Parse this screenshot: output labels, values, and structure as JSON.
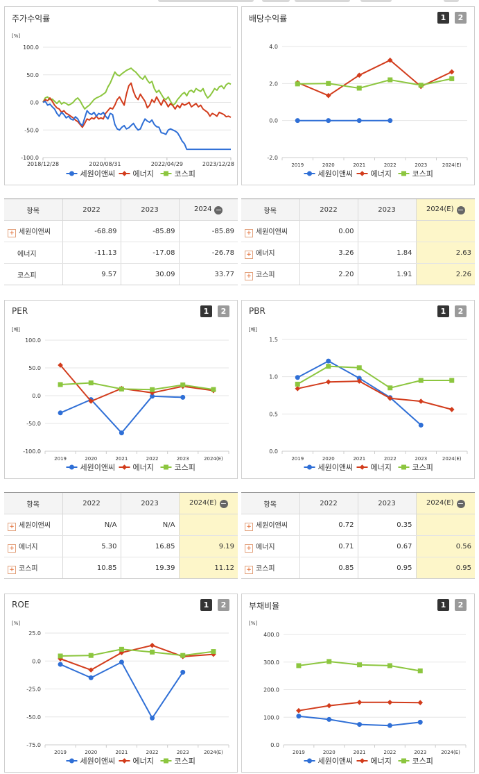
{
  "series_names": [
    "세원이앤씨",
    "에너지",
    "코스피"
  ],
  "series_colors": [
    "#2f6fd6",
    "#d23c1c",
    "#8cc63f"
  ],
  "pager": [
    "1",
    "2"
  ],
  "charts": [
    {
      "id": "stock",
      "title": "주가수익률",
      "unit": "[%]",
      "yticks": [
        "100.0",
        "50.0",
        "0.0",
        "-50.0",
        "-100.0"
      ],
      "xticks": [
        "2018/12/28",
        "2020/08/31",
        "2022/04/29",
        "2023/12/28"
      ]
    },
    {
      "id": "dividend",
      "title": "배당수익률",
      "unit": "",
      "yticks": [
        "4.0",
        "2.0",
        "0.0",
        "-2.0"
      ],
      "xticks": [
        "2019",
        "2020",
        "2021",
        "2022",
        "2023",
        "2024(E)"
      ]
    },
    {
      "id": "per",
      "title": "PER",
      "unit": "[배]",
      "yticks": [
        "100.0",
        "50.0",
        "0.0",
        "-50.0",
        "-100.0"
      ],
      "xticks": [
        "2019",
        "2020",
        "2021",
        "2022",
        "2023",
        "2024(E)"
      ]
    },
    {
      "id": "pbr",
      "title": "PBR",
      "unit": "[배]",
      "yticks": [
        "1.5",
        "1.0",
        "0.5",
        "0.0"
      ],
      "xticks": [
        "2019",
        "2020",
        "2021",
        "2022",
        "2023",
        "2024(E)"
      ]
    },
    {
      "id": "roe",
      "title": "ROE",
      "unit": "[%]",
      "yticks": [
        "25.0",
        "0.0",
        "-25.0",
        "-50.0",
        "-75.0"
      ],
      "xticks": [
        "2019",
        "2020",
        "2021",
        "2022",
        "2023",
        "2024(E)"
      ]
    },
    {
      "id": "debt",
      "title": "부채비율",
      "unit": "[%]",
      "yticks": [
        "400.0",
        "300.0",
        "200.0",
        "100.0",
        "0.0"
      ],
      "xticks": [
        "2019",
        "2020",
        "2021",
        "2022",
        "2023",
        "2024(E)"
      ]
    }
  ],
  "chart_data": [
    {
      "type": "line",
      "title": "주가수익률",
      "ylabel": "[%]",
      "ylim": [
        -100,
        100
      ],
      "x_start": "2018/12/28",
      "x_end": "2023/12/28",
      "series": [
        {
          "name": "세원이앤씨",
          "values": [
            0,
            2,
            -5,
            -3,
            -8,
            -12,
            -20,
            -25,
            -18,
            -22,
            -28,
            -25,
            -30,
            -32,
            -26,
            -30,
            -38,
            -42,
            -28,
            -15,
            -20,
            -22,
            -18,
            -25,
            -20,
            -22,
            -18,
            -25,
            -30,
            -20,
            -22,
            -40,
            -48,
            -50,
            -45,
            -42,
            -48,
            -46,
            -42,
            -38,
            -45,
            -50,
            -48,
            -38,
            -30,
            -34,
            -36,
            -32,
            -40,
            -44,
            -45,
            -55,
            -56,
            -58,
            -50,
            -48,
            -50,
            -52,
            -55,
            -62,
            -70,
            -75,
            -85,
            -85,
            -85,
            -85,
            -85,
            -85,
            -85,
            -85,
            -85,
            -85,
            -85,
            -85,
            -85,
            -85,
            -85,
            -85,
            -85,
            -85,
            -85,
            -85
          ]
        },
        {
          "name": "에너지",
          "values": [
            0,
            5,
            3,
            8,
            2,
            -5,
            -10,
            -12,
            -18,
            -15,
            -20,
            -22,
            -25,
            -28,
            -32,
            -35,
            -40,
            -45,
            -38,
            -30,
            -32,
            -28,
            -30,
            -25,
            -30,
            -28,
            -30,
            -20,
            -15,
            -10,
            -12,
            -5,
            5,
            10,
            2,
            -5,
            15,
            30,
            35,
            20,
            10,
            5,
            15,
            8,
            2,
            -10,
            -5,
            5,
            0,
            10,
            2,
            -5,
            5,
            0,
            -8,
            -2,
            -6,
            -12,
            -5,
            -10,
            -2,
            -5,
            -3,
            0,
            -8,
            -5,
            -2,
            -8,
            -5,
            -12,
            -15,
            -18,
            -25,
            -20,
            -22,
            -25,
            -18,
            -20,
            -22,
            -26,
            -25,
            -27
          ]
        },
        {
          "name": "코스피",
          "values": [
            0,
            8,
            10,
            5,
            6,
            2,
            -2,
            3,
            -3,
            0,
            -2,
            -5,
            -3,
            0,
            5,
            8,
            3,
            -5,
            -12,
            -8,
            -5,
            0,
            5,
            8,
            10,
            12,
            15,
            18,
            28,
            35,
            45,
            55,
            50,
            48,
            52,
            55,
            58,
            60,
            62,
            58,
            55,
            50,
            45,
            42,
            48,
            40,
            35,
            38,
            25,
            18,
            22,
            15,
            8,
            5,
            10,
            2,
            -5,
            -2,
            5,
            10,
            15,
            18,
            12,
            20,
            22,
            18,
            25,
            22,
            20,
            25,
            15,
            8,
            12,
            18,
            25,
            22,
            28,
            30,
            25,
            32,
            35,
            33
          ]
        }
      ]
    },
    {
      "type": "line",
      "title": "배당수익률",
      "ylim": [
        -2,
        4
      ],
      "categories": [
        "2019",
        "2020",
        "2021",
        "2022",
        "2023",
        "2024(E)"
      ],
      "series": [
        {
          "name": "세원이앤씨",
          "values": [
            0.0,
            0.0,
            0.0,
            0.0,
            null,
            null
          ]
        },
        {
          "name": "에너지",
          "values": [
            2.05,
            1.35,
            2.45,
            3.26,
            1.84,
            2.63
          ]
        },
        {
          "name": "코스피",
          "values": [
            1.98,
            2.0,
            1.75,
            2.2,
            1.91,
            2.26
          ]
        }
      ]
    },
    {
      "type": "line",
      "title": "PER",
      "ylabel": "[배]",
      "ylim": [
        -100,
        100
      ],
      "categories": [
        "2019",
        "2020",
        "2021",
        "2022",
        "2023",
        "2024(E)"
      ],
      "series": [
        {
          "name": "세원이앤씨",
          "values": [
            -31,
            -7,
            -67,
            -1,
            -3,
            null
          ]
        },
        {
          "name": "에너지",
          "values": [
            55,
            -10,
            13,
            5.3,
            16.85,
            9.19
          ]
        },
        {
          "name": "코스피",
          "values": [
            20,
            23,
            12,
            10.85,
            19.39,
            11.12
          ]
        }
      ]
    },
    {
      "type": "line",
      "title": "PBR",
      "ylabel": "[배]",
      "ylim": [
        0,
        1.5
      ],
      "categories": [
        "2019",
        "2020",
        "2021",
        "2022",
        "2023",
        "2024(E)"
      ],
      "series": [
        {
          "name": "세원이앤씨",
          "values": [
            0.99,
            1.21,
            0.98,
            0.72,
            0.35,
            null
          ]
        },
        {
          "name": "에너지",
          "values": [
            0.84,
            0.93,
            0.94,
            0.71,
            0.67,
            0.56
          ]
        },
        {
          "name": "코스피",
          "values": [
            0.9,
            1.14,
            1.12,
            0.85,
            0.95,
            0.95
          ]
        }
      ]
    },
    {
      "type": "line",
      "title": "ROE",
      "ylabel": "[%]",
      "ylim": [
        -75,
        25
      ],
      "categories": [
        "2019",
        "2020",
        "2021",
        "2022",
        "2023",
        "2024(E)"
      ],
      "series": [
        {
          "name": "세원이앤씨",
          "values": [
            -3,
            -15,
            -1,
            -51,
            -10,
            null
          ]
        },
        {
          "name": "에너지",
          "values": [
            2,
            -8,
            7.5,
            14,
            4,
            6
          ]
        },
        {
          "name": "코스피",
          "values": [
            4.5,
            5,
            10.5,
            8,
            5,
            8.5
          ]
        }
      ]
    },
    {
      "type": "line",
      "title": "부채비율",
      "ylabel": "[%]",
      "ylim": [
        0,
        400
      ],
      "categories": [
        "2019",
        "2020",
        "2021",
        "2022",
        "2023",
        "2024(E)"
      ],
      "series": [
        {
          "name": "세원이앤씨",
          "values": [
            104,
            92,
            74,
            70,
            82,
            null
          ]
        },
        {
          "name": "에너지",
          "values": [
            124,
            142,
            154,
            154,
            153,
            null
          ]
        },
        {
          "name": "코스피",
          "values": [
            287,
            302,
            290,
            287,
            268,
            null
          ]
        }
      ]
    }
  ],
  "tables": [
    {
      "header": [
        "항목",
        "2022",
        "2023",
        "2024"
      ],
      "has_minus": true,
      "estimate_col": false,
      "rows": [
        {
          "name": "세원이앤씨",
          "plus": true,
          "cells": [
            "-68.89",
            "-85.89",
            "-85.89"
          ]
        },
        {
          "name": "에너지",
          "plus": false,
          "cells": [
            "-11.13",
            "-17.08",
            "-26.78"
          ]
        },
        {
          "name": "코스피",
          "plus": false,
          "cells": [
            "9.57",
            "30.09",
            "33.77"
          ]
        }
      ]
    },
    {
      "header": [
        "항목",
        "2022",
        "2023",
        "2024(E)"
      ],
      "has_minus": true,
      "estimate_col": true,
      "rows": [
        {
          "name": "세원이앤씨",
          "plus": true,
          "cells": [
            "0.00",
            "",
            ""
          ]
        },
        {
          "name": "에너지",
          "plus": true,
          "cells": [
            "3.26",
            "1.84",
            "2.63"
          ]
        },
        {
          "name": "코스피",
          "plus": true,
          "cells": [
            "2.20",
            "1.91",
            "2.26"
          ]
        }
      ]
    },
    {
      "header": [
        "항목",
        "2022",
        "2023",
        "2024(E)"
      ],
      "has_minus": true,
      "estimate_col": true,
      "rows": [
        {
          "name": "세원이앤씨",
          "plus": true,
          "cells": [
            "N/A",
            "N/A",
            ""
          ]
        },
        {
          "name": "에너지",
          "plus": true,
          "cells": [
            "5.30",
            "16.85",
            "9.19"
          ]
        },
        {
          "name": "코스피",
          "plus": true,
          "cells": [
            "10.85",
            "19.39",
            "11.12"
          ]
        }
      ]
    },
    {
      "header": [
        "항목",
        "2022",
        "2023",
        "2024(E)"
      ],
      "has_minus": true,
      "estimate_col": true,
      "rows": [
        {
          "name": "세원이앤씨",
          "plus": true,
          "cells": [
            "0.72",
            "0.35",
            ""
          ]
        },
        {
          "name": "에너지",
          "plus": true,
          "cells": [
            "0.71",
            "0.67",
            "0.56"
          ]
        },
        {
          "name": "코스피",
          "plus": true,
          "cells": [
            "0.85",
            "0.95",
            "0.95"
          ]
        }
      ]
    }
  ]
}
